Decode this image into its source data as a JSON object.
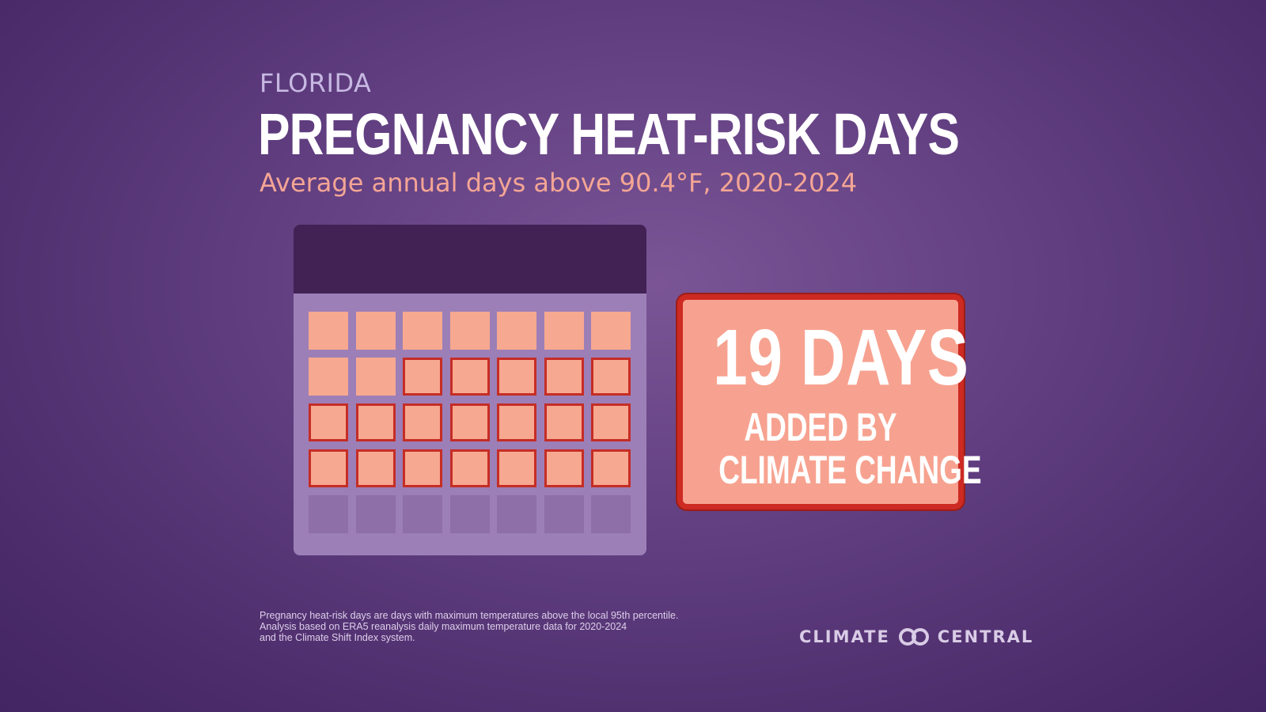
{
  "header": {
    "eyebrow": "FLORIDA",
    "title": "PREGNANCY HEAT-RISK DAYS",
    "subtitle": "Average annual days above 90.4°F, 2020-2024"
  },
  "calendar": {
    "days_total": 28,
    "days_added_by_climate_change": 19,
    "colors": {
      "header": "#422155",
      "body": "#9d7fb7",
      "day": "#f7a890",
      "hot_outline": "#c52d25",
      "empty": "#8e6fa7"
    }
  },
  "badge": {
    "big_text": "19 DAYS",
    "line1": "ADDED BY",
    "line2": "CLIMATE CHANGE",
    "colors": {
      "fill": "#f7a290",
      "border": "#cc2a22"
    }
  },
  "footnote": {
    "line1": "Pregnancy heat-risk days are days with maximum temperatures above the local 95th percentile.",
    "line2": "Analysis based on ERA5 reanalysis daily maximum temperature data for 2020-2024",
    "line3": "and the Climate Shift Index system."
  },
  "logo": {
    "left_text": "CLIMATE",
    "right_text": "CENTRAL",
    "icon": "climate-central-rings-icon"
  }
}
